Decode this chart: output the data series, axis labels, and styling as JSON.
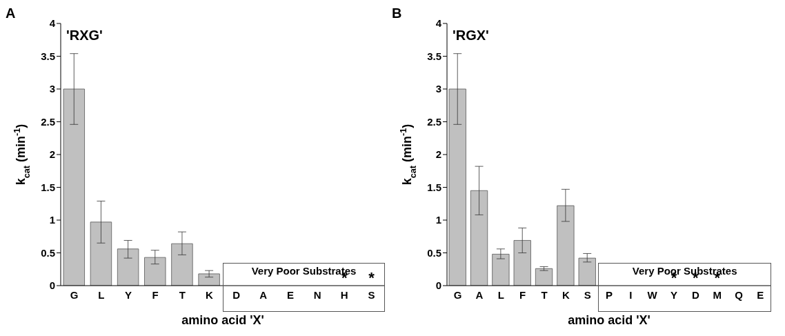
{
  "chart_data": [
    {
      "type": "bar",
      "title": "A",
      "xlabel": "amino acid 'X'",
      "ylabel": "k$_{cat}$ (min$^{-1}$)",
      "categories": [
        "G",
        "L",
        "Y",
        "F",
        "T",
        "K",
        "D",
        "A",
        "E",
        "N",
        "H",
        "S"
      ],
      "values": [
        3.0,
        0.97,
        0.56,
        0.43,
        0.64,
        0.18,
        0,
        0,
        0,
        0,
        0,
        0
      ],
      "color": "#c0c0c0",
      "errors": [
        [
          2.46,
          3.54
        ],
        [
          0.65,
          1.29
        ],
        [
          0.42,
          0.69
        ],
        [
          0.33,
          0.54
        ],
        [
          0.47,
          0.82
        ],
        [
          0.13,
          0.23
        ],
        null,
        null,
        null,
        null,
        null,
        null
      ],
      "ylim": [
        0,
        4
      ],
      "yticks": [
        0,
        0.5,
        1,
        1.5,
        2,
        2.5,
        3,
        3.5,
        4
      ],
      "grid": false,
      "legend": false,
      "annotations": [
        "'RXG'",
        "Very Poor Substrates",
        {
          "text": "*",
          "x": "H",
          "y": 0
        },
        {
          "text": "*",
          "x": "S",
          "y": 0
        }
      ]
    },
    {
      "type": "bar",
      "title": "B",
      "xlabel": "amino acid 'X'",
      "ylabel": "k$_{cat}$ (min$^{-1}$)",
      "categories": [
        "G",
        "A",
        "L",
        "F",
        "T",
        "K",
        "S",
        "P",
        "I",
        "W",
        "Y",
        "D",
        "M",
        "Q",
        "E"
      ],
      "values": [
        3.0,
        1.45,
        0.48,
        0.69,
        0.26,
        1.22,
        0.42,
        0,
        0,
        0,
        0,
        0,
        0,
        0,
        0
      ],
      "color": "#c0c0c0",
      "errors": [
        [
          2.46,
          3.54
        ],
        [
          1.08,
          1.82
        ],
        [
          0.41,
          0.56
        ],
        [
          0.5,
          0.88
        ],
        [
          0.23,
          0.29
        ],
        [
          0.98,
          1.47
        ],
        [
          0.36,
          0.49
        ],
        null,
        null,
        null,
        null,
        null,
        null,
        null,
        null
      ],
      "ylim": [
        0,
        4
      ],
      "yticks": [
        0,
        0.5,
        1,
        1.5,
        2,
        2.5,
        3,
        3.5,
        4
      ],
      "grid": false,
      "legend": false,
      "annotations": [
        "'RGX'",
        "Very Poor Substrates",
        {
          "text": "*",
          "x": "Y",
          "y": 0
        },
        {
          "text": "*",
          "x": "D",
          "y": 0
        },
        {
          "text": "*",
          "x": "M",
          "y": 0
        }
      ]
    }
  ]
}
